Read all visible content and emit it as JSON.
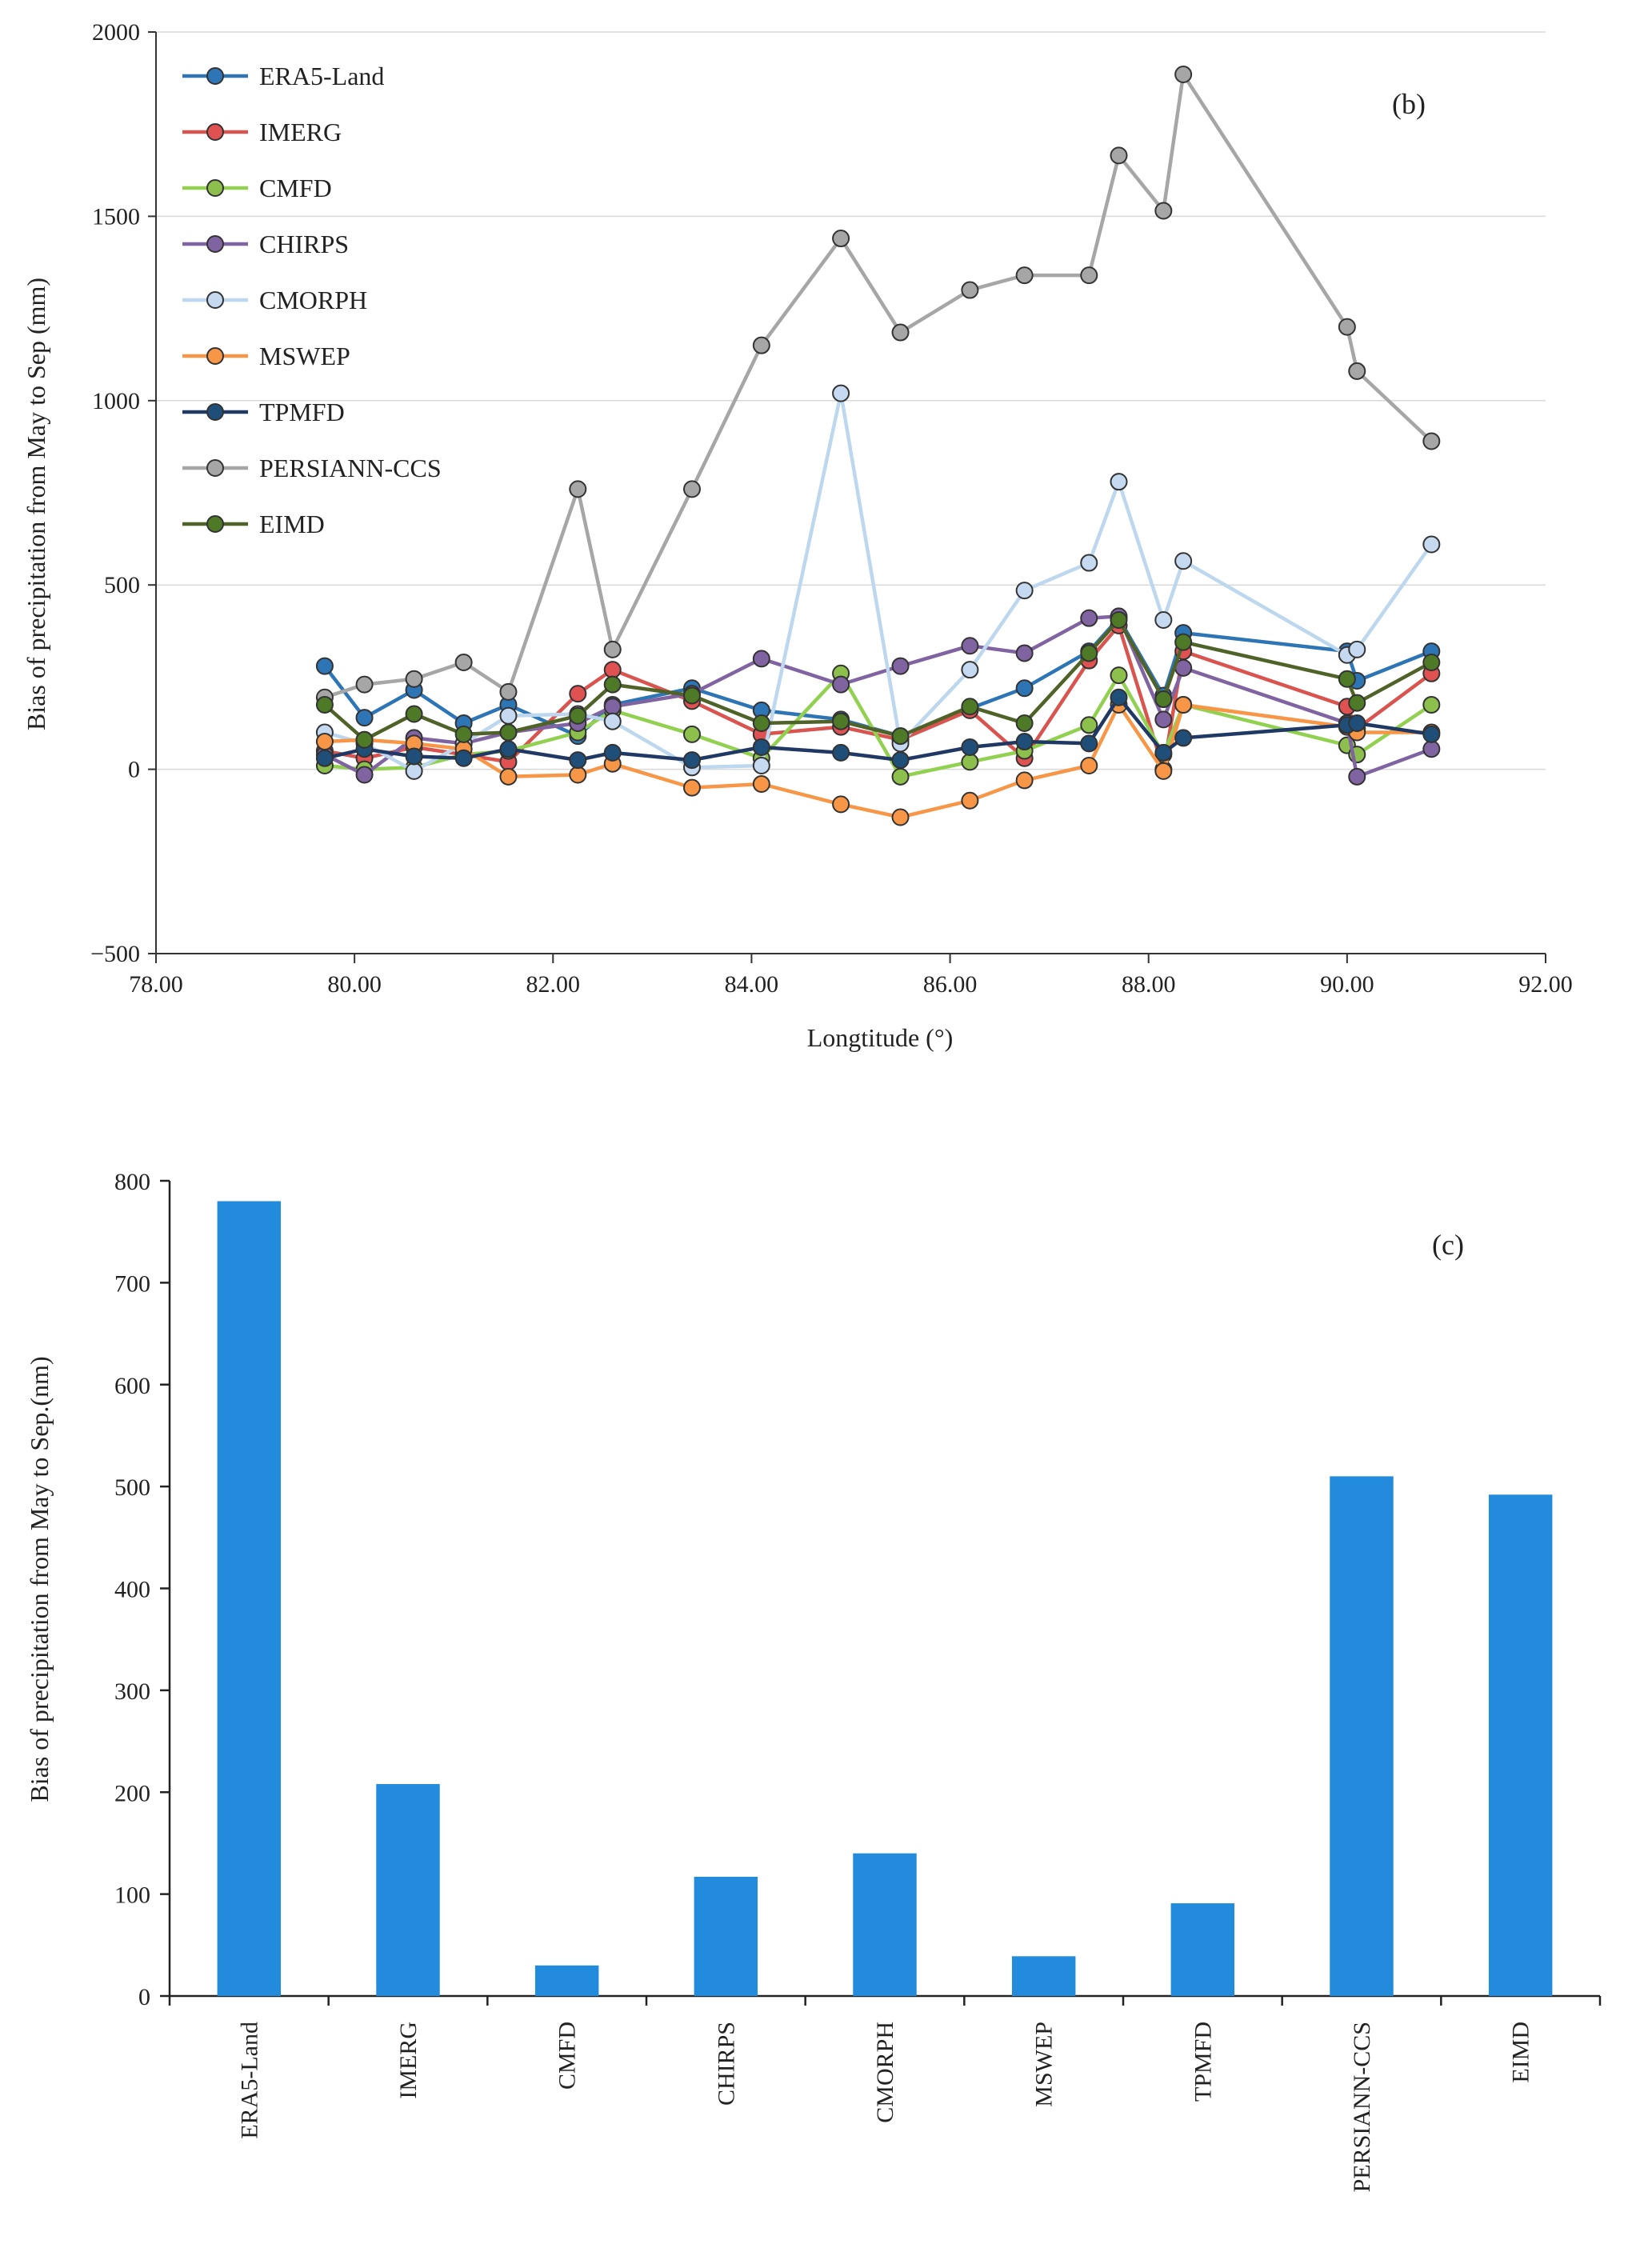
{
  "chart_data": [
    {
      "type": "line",
      "panel_label": "(b)",
      "xlabel": "Longtitude (°)",
      "ylabel": "Bias of precipitation from May to Sep  (mm)",
      "xlim": [
        78,
        92
      ],
      "ylim": [
        -500,
        2000
      ],
      "xticks": [
        78,
        80,
        82,
        84,
        86,
        88,
        90,
        92
      ],
      "xtick_labels": [
        "78.00",
        "80.00",
        "82.00",
        "84.00",
        "86.00",
        "88.00",
        "90.00",
        "92.00"
      ],
      "yticks": [
        -500,
        0,
        500,
        1000,
        1500,
        2000
      ],
      "ytick_labels": [
        "−500",
        "0",
        "500",
        "1000",
        "1500",
        "2000"
      ],
      "grid": "horizontal",
      "legend_position": "top-left",
      "x": [
        79.7,
        80.1,
        80.6,
        81.1,
        81.55,
        82.25,
        82.6,
        83.4,
        84.1,
        84.9,
        85.5,
        86.2,
        86.75,
        87.4,
        87.7,
        88.15,
        88.35,
        90.0,
        90.1,
        90.85
      ],
      "series": [
        {
          "name": "ERA5-Land",
          "line_color": "#2e75b6",
          "marker_color": "#2e75b6",
          "values": [
            280,
            140,
            215,
            125,
            175,
            90,
            175,
            220,
            160,
            135,
            90,
            165,
            220,
            320,
            410,
            200,
            370,
            320,
            240,
            320
          ]
        },
        {
          "name": "IMERG",
          "line_color": "#d9534f",
          "marker_color": "#e05252",
          "values": [
            50,
            30,
            60,
            40,
            20,
            205,
            270,
            185,
            95,
            115,
            80,
            160,
            30,
            295,
            390,
            0,
            320,
            170,
            110,
            260
          ]
        },
        {
          "name": "CMFD",
          "line_color": "#92d050",
          "marker_color": "#8cbf4b",
          "values": [
            10,
            0,
            5,
            40,
            50,
            100,
            160,
            95,
            30,
            260,
            -20,
            20,
            50,
            120,
            255,
            40,
            175,
            65,
            40,
            175
          ]
        },
        {
          "name": "CHIRPS",
          "line_color": "#8064a2",
          "marker_color": "#8064a2",
          "values": [
            40,
            -15,
            85,
            70,
            100,
            125,
            170,
            205,
            300,
            230,
            280,
            335,
            315,
            410,
            415,
            135,
            275,
            125,
            -20,
            55
          ]
        },
        {
          "name": "CMORPH",
          "line_color": "#bdd7ee",
          "marker_color": "#c5d9f1",
          "values": [
            100,
            70,
            -5,
            70,
            145,
            150,
            130,
            5,
            10,
            1020,
            70,
            270,
            485,
            560,
            780,
            405,
            565,
            310,
            325,
            610
          ]
        },
        {
          "name": "MSWEP",
          "line_color": "#f79646",
          "marker_color": "#f79646",
          "values": [
            75,
            80,
            70,
            55,
            -20,
            -15,
            15,
            -50,
            -40,
            -95,
            -130,
            -85,
            -30,
            10,
            175,
            -5,
            175,
            115,
            100,
            100
          ]
        },
        {
          "name": "TPMFD",
          "line_color": "#1f3864",
          "marker_color": "#1f4e79",
          "values": [
            30,
            55,
            35,
            30,
            55,
            25,
            45,
            25,
            60,
            45,
            25,
            60,
            75,
            70,
            195,
            45,
            85,
            120,
            125,
            95
          ]
        },
        {
          "name": "PERSIANN-CCS",
          "line_color": "#a6a6a6",
          "marker_color": "#a6a6a6",
          "values": [
            195,
            230,
            245,
            290,
            210,
            760,
            325,
            760,
            1150,
            1440,
            1185,
            1300,
            1340,
            1340,
            1665,
            1515,
            1885,
            1200,
            1080,
            890
          ]
        },
        {
          "name": "EIMD",
          "line_color": "#4f6228",
          "marker_color": "#4e7a27",
          "values": [
            175,
            80,
            150,
            95,
            100,
            145,
            230,
            200,
            125,
            130,
            90,
            170,
            125,
            315,
            405,
            190,
            345,
            245,
            180,
            290
          ]
        }
      ]
    },
    {
      "type": "bar",
      "panel_label": "(c)",
      "xlabel": "",
      "ylabel": "Bias of precipitation from May to Sep.(nm)",
      "ylim": [
        0,
        800
      ],
      "yticks": [
        0,
        100,
        200,
        300,
        400,
        500,
        600,
        700,
        800
      ],
      "ytick_labels": [
        "0",
        "100",
        "200",
        "300",
        "400",
        "500",
        "600",
        "700",
        "800"
      ],
      "bar_color": "#228bdc",
      "grid": "none",
      "categories": [
        "ERA5-Land",
        "IMERG",
        "CMFD",
        "CHIRPS",
        "CMORPH",
        "MSWEP",
        "TPMFD",
        "PERSIANN-CCS",
        "EIMD"
      ],
      "values": [
        780,
        208,
        30,
        117,
        140,
        39,
        91,
        510,
        492
      ]
    }
  ]
}
